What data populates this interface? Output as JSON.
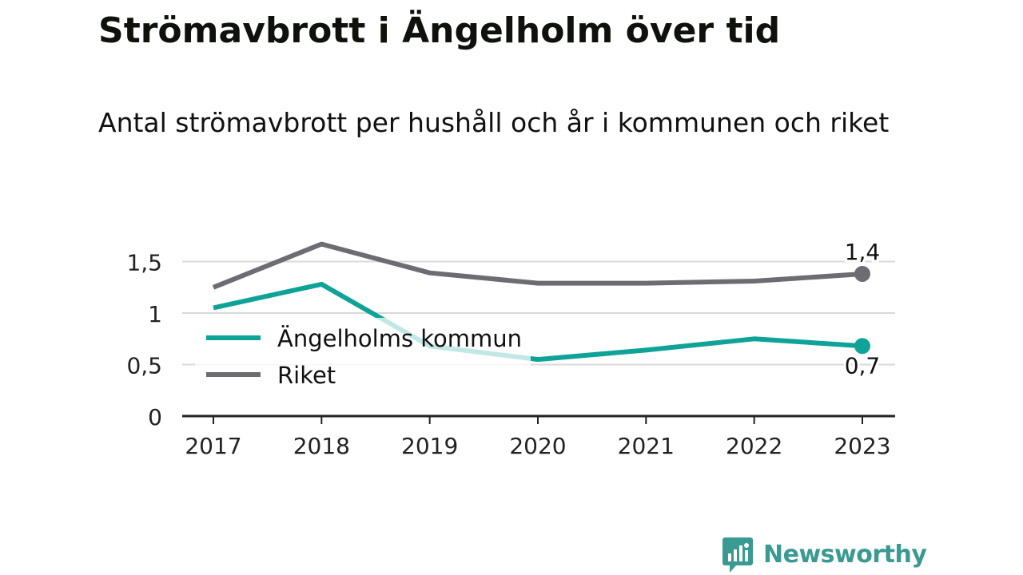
{
  "header": {
    "title": "Strömavbrott i Ängelholm över tid",
    "subtitle": "Antal strömavbrott per hushåll och år i kommunen och riket"
  },
  "brand": {
    "name": "Newsworthy",
    "color": "#3a9a92",
    "icon": "bar-chart-speech-bubble-icon"
  },
  "chart_data": {
    "type": "line",
    "x": [
      "2017",
      "2018",
      "2019",
      "2020",
      "2021",
      "2022",
      "2023"
    ],
    "series": [
      {
        "name": "Ängelholms kommun",
        "color": "#0fa398",
        "values": [
          1.05,
          1.28,
          0.68,
          0.55,
          0.64,
          0.75,
          0.68
        ],
        "end_label": "0,7"
      },
      {
        "name": "Riket",
        "color": "#6d6c72",
        "values": [
          1.25,
          1.67,
          1.39,
          1.29,
          1.29,
          1.31,
          1.38
        ],
        "end_label": "1,4"
      }
    ],
    "ylim": [
      0,
      1.65
    ],
    "yticks": [
      {
        "value": 0,
        "label": "0"
      },
      {
        "value": 0.5,
        "label": "0,5"
      },
      {
        "value": 1,
        "label": "1"
      },
      {
        "value": 1.5,
        "label": "1,5"
      }
    ],
    "grid": true,
    "legend_position": "center-left"
  }
}
